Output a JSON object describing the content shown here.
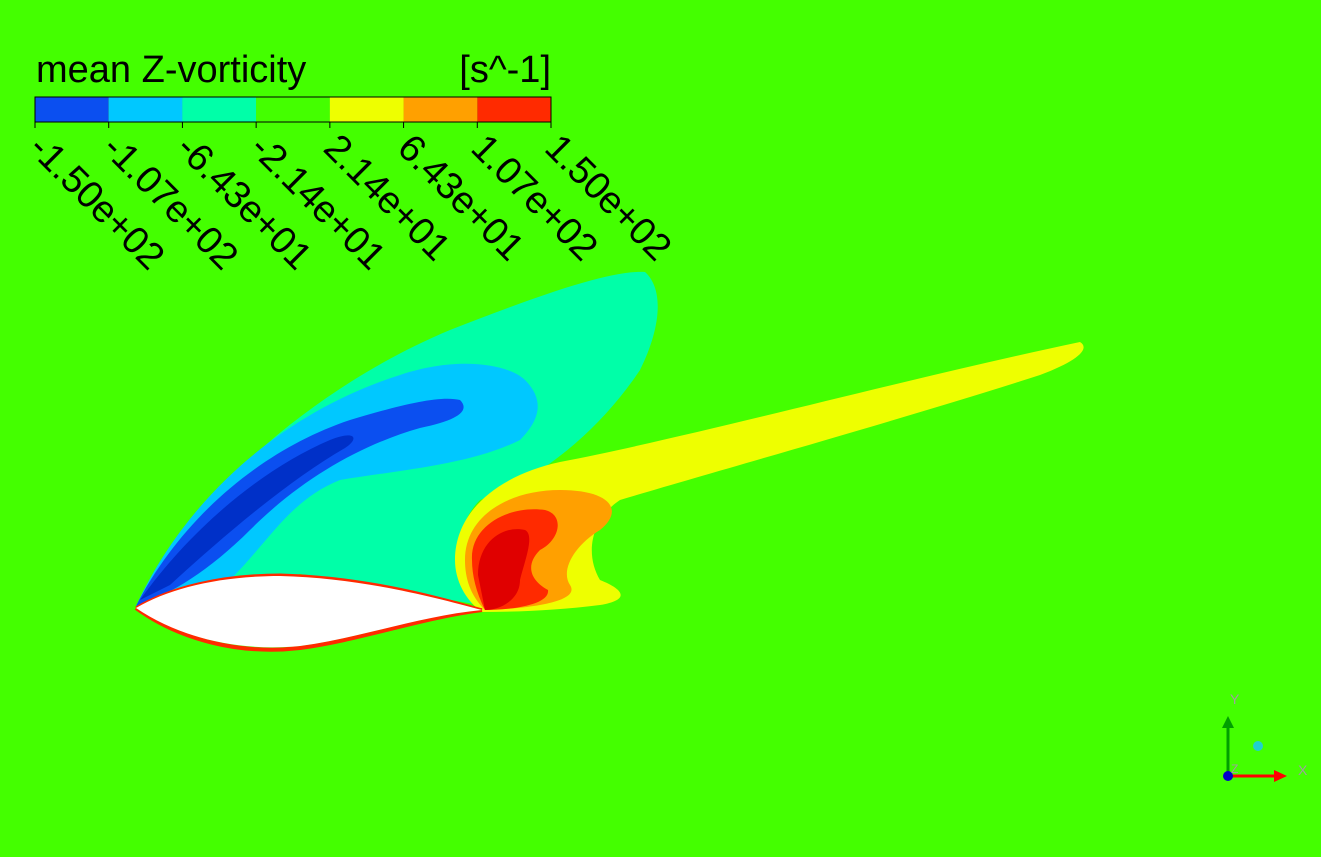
{
  "legend": {
    "title": "mean Z-vorticity",
    "unit": "[s^-1]",
    "colors": [
      "#0b4ff0",
      "#00c8ff",
      "#00ffa8",
      "#44ff00",
      "#eeff00",
      "#ffa000",
      "#ff2a00"
    ],
    "tick_labels": [
      "-1.50e+02",
      "-1.07e+02",
      "-6.43e+01",
      "-2.14e+01",
      "2.14e+01",
      "6.43e+01",
      "1.07e+02",
      "1.50e+02"
    ]
  },
  "axes_triad": {
    "x": "X",
    "y": "Y",
    "z": "Z"
  }
}
